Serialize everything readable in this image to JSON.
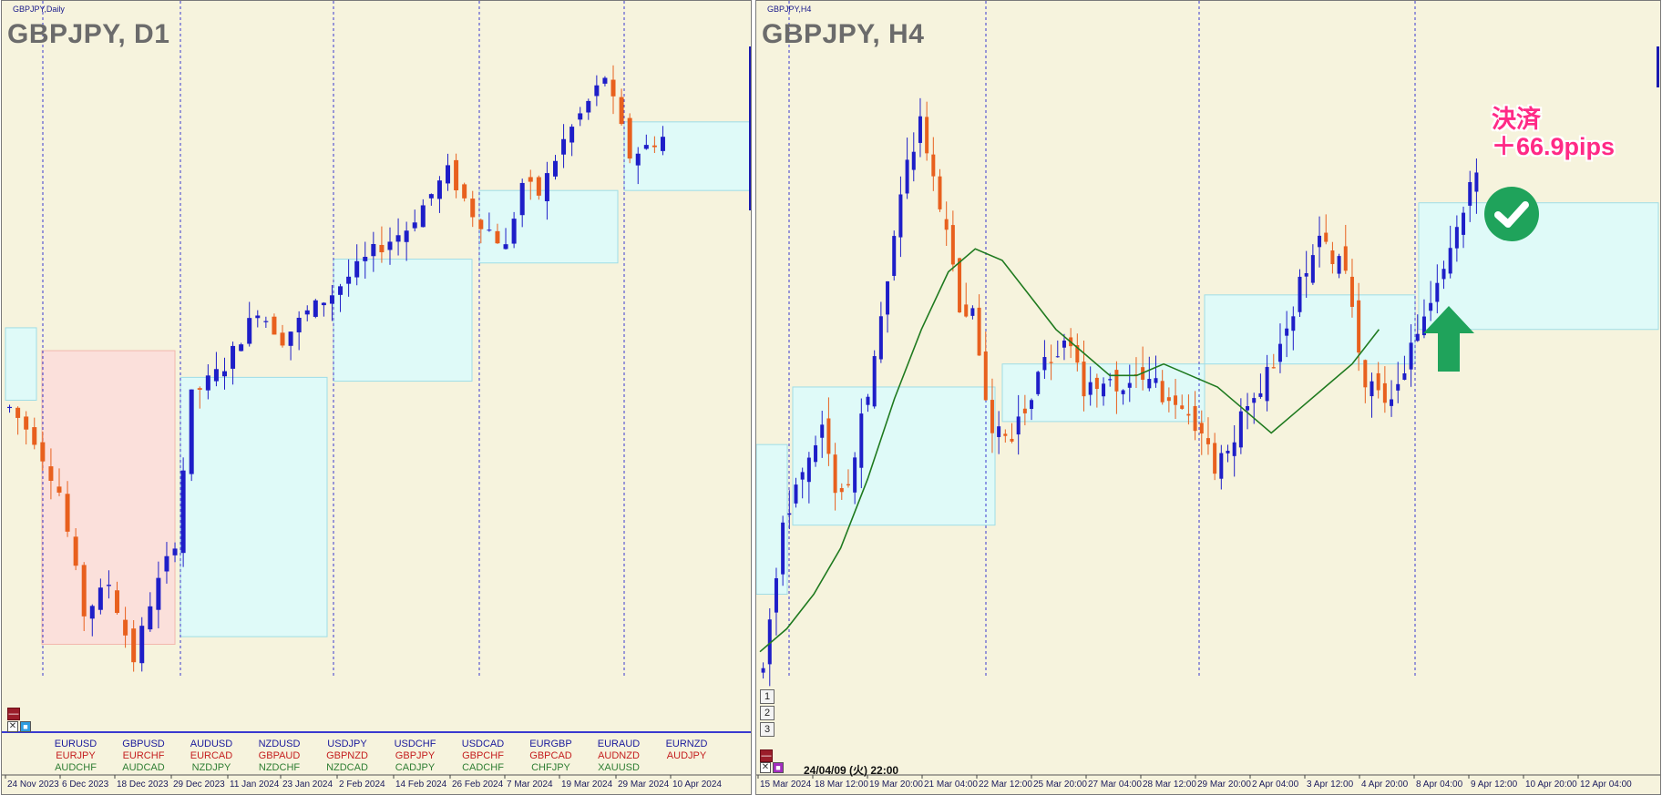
{
  "left_panel": {
    "window_title": "GBPJPY,Daily",
    "chart_title": "GBPJPY, D1",
    "x_labels": [
      "24 Nov 2023",
      "6 Dec 2023",
      "18 Dec 2023",
      "29 Dec 2023",
      "11 Jan 2024",
      "23 Jan 2024",
      "2 Feb 2024",
      "14 Feb 2024",
      "26 Feb 2024",
      "7 Mar 2024",
      "19 Mar 2024",
      "29 Mar 2024",
      "10 Apr 2024"
    ],
    "symbol_columns": [
      [
        "EURUSD",
        "EURJPY",
        "AUDCHF"
      ],
      [
        "GBPUSD",
        "EURCHF",
        "AUDCAD"
      ],
      [
        "AUDUSD",
        "EURCAD",
        "NZDJPY"
      ],
      [
        "NZDUSD",
        "GBPAUD",
        "NZDCHF"
      ],
      [
        "USDJPY",
        "GBPNZD",
        "NZDCAD"
      ],
      [
        "USDCHF",
        "GBPJPY",
        "CADJPY"
      ],
      [
        "USDCAD",
        "GBPCHF",
        "CADCHF"
      ],
      [
        "EURGBP",
        "GBPCAD",
        "CHFJPY"
      ],
      [
        "EURAUD",
        "AUDNZD",
        "XAUUSD"
      ],
      [
        "EURNZD",
        "AUDJPY",
        ""
      ]
    ]
  },
  "right_panel": {
    "window_title": "GBPJPY,H4",
    "chart_title": "GBPJPY, H4",
    "x_labels": [
      "15 Mar 2024",
      "18 Mar 12:00",
      "19 Mar 20:00",
      "21 Mar 04:00",
      "22 Mar 12:00",
      "25 Mar 20:00",
      "27 Mar 04:00",
      "28 Mar 12:00",
      "29 Mar 20:00",
      "2 Apr 04:00",
      "3 Apr 12:00",
      "4 Apr 20:00",
      "8 Apr 04:00",
      "9 Apr 12:00",
      "10 Apr 20:00",
      "12 Apr 04:00"
    ],
    "cursor_datetime": "24/04/09 (火) 22:00",
    "annotation_line1": "決済",
    "annotation_line2": "＋66.9pips",
    "buttons": [
      "1",
      "2",
      "3"
    ]
  },
  "colors": {
    "bull": "#1e1ec8",
    "bear": "#e8601e",
    "background": "#f6f3dd",
    "box_blue": "#dffaf8",
    "box_red": "#fbe0db",
    "ma_line": "#1f7a1f",
    "annotation": "#ff2a86"
  },
  "chart_data": [
    {
      "type": "candlestick",
      "title": "GBPJPY, D1",
      "x_tick_labels": [
        "24 Nov 2023",
        "6 Dec 2023",
        "18 Dec 2023",
        "29 Dec 2023",
        "11 Jan 2024",
        "23 Jan 2024",
        "2 Feb 2024",
        "14 Feb 2024",
        "26 Feb 2024",
        "7 Mar 2024",
        "19 Mar 2024",
        "29 Mar 2024",
        "10 Apr 2024"
      ],
      "path_points": [
        [
          0,
          185.0
        ],
        [
          3,
          184.2
        ],
        [
          6,
          182.8
        ],
        [
          9,
          179.6
        ],
        [
          12,
          180.4
        ],
        [
          15,
          178.4
        ],
        [
          17,
          179.9
        ],
        [
          20,
          181.5
        ],
        [
          22,
          185.3
        ],
        [
          26,
          186.1
        ],
        [
          30,
          187.6
        ],
        [
          33,
          186.8
        ],
        [
          36,
          187.5
        ],
        [
          39,
          188.0
        ],
        [
          44,
          189.1
        ],
        [
          48,
          189.7
        ],
        [
          53,
          191.2
        ],
        [
          56,
          190.1
        ],
        [
          60,
          189.2
        ],
        [
          62,
          190.9
        ],
        [
          64,
          190.6
        ],
        [
          67,
          192.0
        ],
        [
          72,
          193.7
        ],
        [
          75,
          191.6
        ],
        [
          79,
          192.1
        ]
      ],
      "series": [
        {
          "name": "GBPJPY",
          "closes": [
            186.8,
            187.4,
            186.2,
            185.1,
            184.9,
            184.2,
            183.6,
            182.2,
            181.8,
            181.2,
            179.4,
            180.6,
            181.2,
            179.8,
            179.1,
            180.5,
            178.7,
            179.5,
            179.9,
            180.4,
            179.5,
            180.8,
            181.3,
            182.2,
            181.6,
            183.3,
            184.8,
            185.6,
            185.4,
            185.7,
            186.1,
            186.5,
            186.9,
            187.2,
            187.0,
            186.9,
            186.1,
            186.5,
            186.8,
            187.8,
            188.3,
            187.9,
            188.2,
            189.5,
            188.9,
            188.6,
            188.8,
            189.0,
            189.9,
            190.5,
            190.3,
            190.2,
            190.8,
            190.9,
            190.4,
            188.9,
            189.9,
            190.8,
            189.7,
            188.8,
            188.4,
            188.7,
            188.8,
            189.6,
            190.0,
            190.4,
            192.3,
            192.9,
            191.6,
            190.7,
            190.8,
            190.5,
            190.6,
            190.0,
            190.6,
            190.8,
            191.2,
            191.9,
            192.2
          ]
        }
      ],
      "box_ranges": [
        {
          "fill": "blue",
          "low": 185.2,
          "high": 187.1
        },
        {
          "fill": "red",
          "low": 178.8,
          "high": 186.5
        },
        {
          "fill": "blue",
          "low": 179.0,
          "high": 185.8
        },
        {
          "fill": "blue",
          "low": 185.7,
          "high": 188.9
        },
        {
          "fill": "blue",
          "low": 188.8,
          "high": 190.7
        },
        {
          "fill": "blue",
          "low": 190.7,
          "high": 192.5
        }
      ],
      "ylim": [
        178,
        194
      ]
    },
    {
      "type": "candlestick",
      "title": "GBPJPY, H4",
      "x_tick_labels": [
        "15 Mar 2024",
        "18 Mar 12:00",
        "19 Mar 20:00",
        "21 Mar 04:00",
        "22 Mar 12:00",
        "25 Mar 20:00",
        "27 Mar 04:00",
        "28 Mar 12:00",
        "29 Mar 20:00",
        "2 Apr 04:00",
        "3 Apr 12:00",
        "4 Apr 20:00",
        "8 Apr 04:00",
        "9 Apr 12:00",
        "10 Apr 20:00",
        "12 Apr 04:00"
      ],
      "path_points": [
        [
          0,
          188.6
        ],
        [
          3,
          189.8
        ],
        [
          6,
          190.3
        ],
        [
          9,
          190.6
        ],
        [
          11,
          190.1
        ],
        [
          13,
          190.2
        ],
        [
          16,
          191.0
        ],
        [
          19,
          192.0
        ],
        [
          21,
          192.7
        ],
        [
          24,
          193.3
        ],
        [
          27,
          192.6
        ],
        [
          30,
          191.7
        ],
        [
          32,
          191.6
        ],
        [
          35,
          190.6
        ],
        [
          38,
          190.6
        ],
        [
          41,
          190.9
        ],
        [
          43,
          191.2
        ],
        [
          46,
          191.4
        ],
        [
          49,
          191.0
        ],
        [
          52,
          191.1
        ],
        [
          55,
          191.0
        ],
        [
          59,
          191.1
        ],
        [
          63,
          190.8
        ],
        [
          67,
          190.6
        ],
        [
          69,
          190.3
        ],
        [
          72,
          190.6
        ],
        [
          76,
          191.0
        ],
        [
          79,
          191.3
        ],
        [
          82,
          191.9
        ],
        [
          85,
          192.3
        ],
        [
          89,
          192.0
        ],
        [
          92,
          191.0
        ],
        [
          96,
          190.9
        ],
        [
          99,
          191.3
        ],
        [
          102,
          191.8
        ],
        [
          105,
          192.2
        ],
        [
          107,
          192.5
        ],
        [
          109,
          192.9
        ]
      ],
      "moving_average": [
        188.7,
        188.9,
        189.2,
        189.6,
        190.2,
        190.9,
        191.5,
        192.0,
        192.2,
        192.1,
        191.8,
        191.5,
        191.3,
        191.1,
        191.1,
        191.2,
        191.1,
        191.0,
        190.8,
        190.6,
        190.8,
        191.0,
        191.2,
        191.5
      ],
      "box_ranges": [
        {
          "fill": "blue",
          "low": 189.2,
          "high": 190.5
        },
        {
          "fill": "blue",
          "low": 189.8,
          "high": 191.0
        },
        {
          "fill": "blue",
          "low": 190.7,
          "high": 191.2
        },
        {
          "fill": "blue",
          "low": 191.2,
          "high": 191.8
        },
        {
          "fill": "blue",
          "low": 191.5,
          "high": 192.6
        }
      ],
      "exit_profit_pips": 66.9,
      "ylim": [
        188.5,
        193.8
      ]
    }
  ]
}
